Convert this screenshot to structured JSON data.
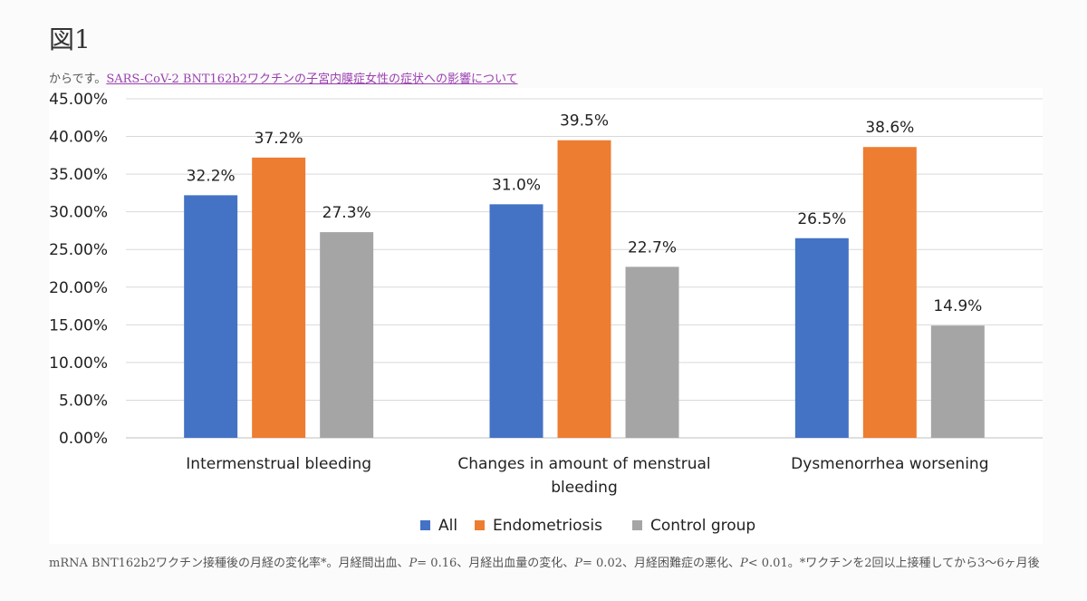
{
  "figure_title": "図1",
  "source": {
    "prefix": "からです。",
    "link_text": "SARS-CoV-2 BNT162b2ワクチンの子宮内膜症女性の症状への影響について"
  },
  "caption": {
    "part1": "mRNA BNT162b2ワクチン接種後の月経の変化率*。月経間出血、",
    "p1": "P",
    "v1": "= 0.16、月経出血量の変化、",
    "p2": "P",
    "v2": "= 0.02、月経困難症の悪化、",
    "p3": "P",
    "v3": "< 0.01。*ワクチンを2回以上接種してから3～6ヶ月後"
  },
  "colors": {
    "All": "#4472c4",
    "Endometriosis": "#ed7d31",
    "Control group": "#a5a5a5"
  },
  "chart_data": {
    "type": "bar",
    "categories": [
      [
        "Intermenstrual bleeding"
      ],
      [
        "Changes in amount of menstrual",
        "bleeding"
      ],
      [
        "Dysmenorrhea worsening"
      ]
    ],
    "series": [
      {
        "name": "All",
        "values": [
          32.2,
          31.0,
          26.5
        ],
        "labels": [
          "32.2%",
          "31.0%",
          "26.5%"
        ]
      },
      {
        "name": "Endometriosis",
        "values": [
          37.2,
          39.5,
          38.6
        ],
        "labels": [
          "37.2%",
          "39.5%",
          "38.6%"
        ]
      },
      {
        "name": "Control group",
        "values": [
          27.3,
          22.7,
          14.9
        ],
        "labels": [
          "27.3%",
          "22.7%",
          "14.9%"
        ]
      }
    ],
    "ylim": [
      0,
      45
    ],
    "yticks": [
      0,
      5,
      10,
      15,
      20,
      25,
      30,
      35,
      40,
      45
    ],
    "ytick_labels": [
      "0.00%",
      "5.00%",
      "10.00%",
      "15.00%",
      "20.00%",
      "25.00%",
      "30.00%",
      "35.00%",
      "40.00%",
      "45.00%"
    ],
    "grid": true,
    "legend": "bottom"
  }
}
